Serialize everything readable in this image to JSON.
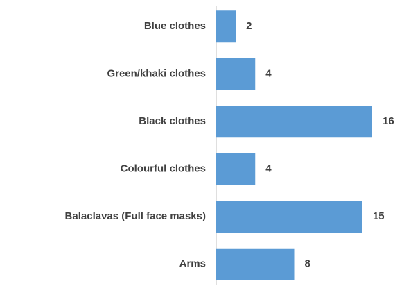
{
  "chart_data": {
    "type": "bar",
    "orientation": "horizontal",
    "categories": [
      "Blue clothes",
      "Green/khaki clothes",
      "Black clothes",
      "Colourful clothes",
      "Balaclavas (Full face masks)",
      "Arms"
    ],
    "values": [
      2,
      4,
      16,
      4,
      15,
      8
    ],
    "color": "#5b9bd5"
  }
}
